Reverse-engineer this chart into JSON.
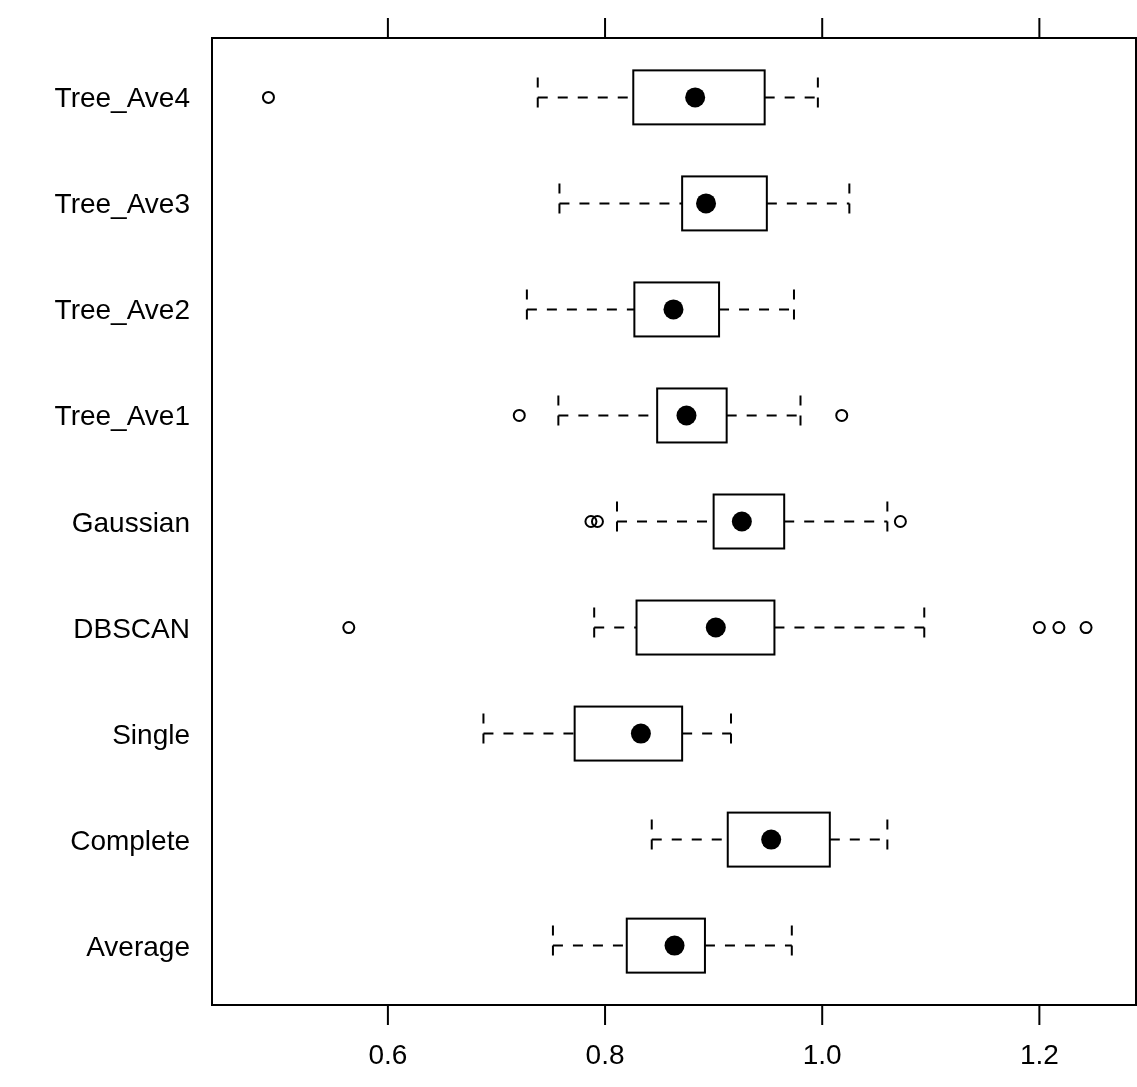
{
  "chart_data": {
    "type": "box",
    "orientation": "horizontal",
    "categories": [
      "Tree_Ave4",
      "Tree_Ave3",
      "Tree_Ave2",
      "Tree_Ave1",
      "Gaussian",
      "DBSCAN",
      "Single",
      "Complete",
      "Average"
    ],
    "boxes": [
      {
        "low": 0.738,
        "q1": 0.826,
        "median": 0.883,
        "q3": 0.947,
        "high": 0.996,
        "outliers": [
          0.49
        ]
      },
      {
        "low": 0.758,
        "q1": 0.871,
        "median": 0.893,
        "q3": 0.949,
        "high": 1.025
      },
      {
        "low": 0.728,
        "q1": 0.827,
        "median": 0.863,
        "q3": 0.905,
        "high": 0.974
      },
      {
        "low": 0.757,
        "q1": 0.848,
        "median": 0.875,
        "q3": 0.912,
        "high": 0.98,
        "outliers": [
          0.721,
          1.018
        ]
      },
      {
        "low": 0.811,
        "q1": 0.9,
        "median": 0.926,
        "q3": 0.965,
        "high": 1.06,
        "outliers": [
          0.787,
          0.793,
          1.072
        ]
      },
      {
        "low": 0.79,
        "q1": 0.829,
        "median": 0.902,
        "q3": 0.956,
        "high": 1.094,
        "outliers": [
          0.564,
          1.2,
          1.218,
          1.243
        ]
      },
      {
        "low": 0.688,
        "q1": 0.772,
        "median": 0.833,
        "q3": 0.871,
        "high": 0.916
      },
      {
        "low": 0.843,
        "q1": 0.913,
        "median": 0.953,
        "q3": 1.007,
        "high": 1.06
      },
      {
        "low": 0.752,
        "q1": 0.82,
        "median": 0.864,
        "q3": 0.892,
        "high": 0.972
      }
    ],
    "xlim": [
      0.438,
      1.289
    ],
    "xticks": [
      0.6,
      0.8,
      {
        "value": 1,
        "label": "1.0"
      },
      1.2
    ]
  }
}
